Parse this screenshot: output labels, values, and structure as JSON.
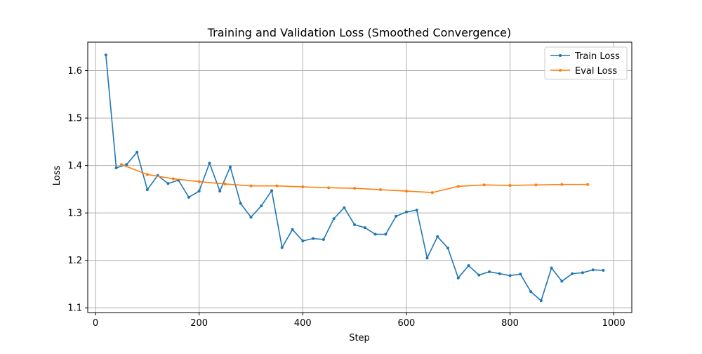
{
  "chart_data": {
    "type": "line",
    "title": "Training and Validation Loss (Smoothed Convergence)",
    "xlabel": "Step",
    "ylabel": "Loss",
    "xlim": [
      -15,
      1035
    ],
    "ylim": [
      1.09,
      1.66
    ],
    "xticks": [
      0,
      200,
      400,
      600,
      800,
      1000
    ],
    "yticks": [
      1.1,
      1.2,
      1.3,
      1.4,
      1.5,
      1.6
    ],
    "xtick_labels": [
      "0",
      "200",
      "400",
      "600",
      "800",
      "1000"
    ],
    "ytick_labels": [
      "1.1",
      "1.2",
      "1.3",
      "1.4",
      "1.5",
      "1.6"
    ],
    "grid": true,
    "legend_position": "top-right",
    "series": [
      {
        "name": "Train Loss",
        "color": "#1f77b4",
        "x": [
          20,
          40,
          60,
          80,
          100,
          120,
          140,
          160,
          180,
          200,
          220,
          240,
          260,
          280,
          300,
          320,
          340,
          360,
          380,
          400,
          420,
          440,
          460,
          480,
          500,
          520,
          540,
          560,
          580,
          600,
          620,
          640,
          660,
          680,
          700,
          720,
          740,
          760,
          780,
          800,
          820,
          840,
          860,
          880,
          900,
          920,
          940,
          960,
          980
        ],
        "y": [
          1.633,
          1.395,
          1.402,
          1.428,
          1.349,
          1.379,
          1.362,
          1.369,
          1.333,
          1.346,
          1.405,
          1.346,
          1.397,
          1.32,
          1.291,
          1.315,
          1.347,
          1.227,
          1.265,
          1.241,
          1.246,
          1.244,
          1.288,
          1.311,
          1.275,
          1.269,
          1.255,
          1.255,
          1.293,
          1.302,
          1.306,
          1.205,
          1.25,
          1.226,
          1.163,
          1.189,
          1.169,
          1.176,
          1.172,
          1.168,
          1.171,
          1.134,
          1.115,
          1.184,
          1.156,
          1.172,
          1.174,
          1.18,
          1.179
        ]
      },
      {
        "name": "Eval Loss",
        "color": "#ff7f0e",
        "x": [
          50,
          100,
          150,
          200,
          250,
          300,
          350,
          400,
          450,
          500,
          550,
          600,
          650,
          700,
          750,
          800,
          850,
          900,
          950
        ],
        "y": [
          1.402,
          1.381,
          1.372,
          1.366,
          1.361,
          1.357,
          1.357,
          1.355,
          1.353,
          1.352,
          1.349,
          1.346,
          1.343,
          1.356,
          1.359,
          1.358,
          1.359,
          1.36,
          1.36
        ]
      }
    ]
  }
}
